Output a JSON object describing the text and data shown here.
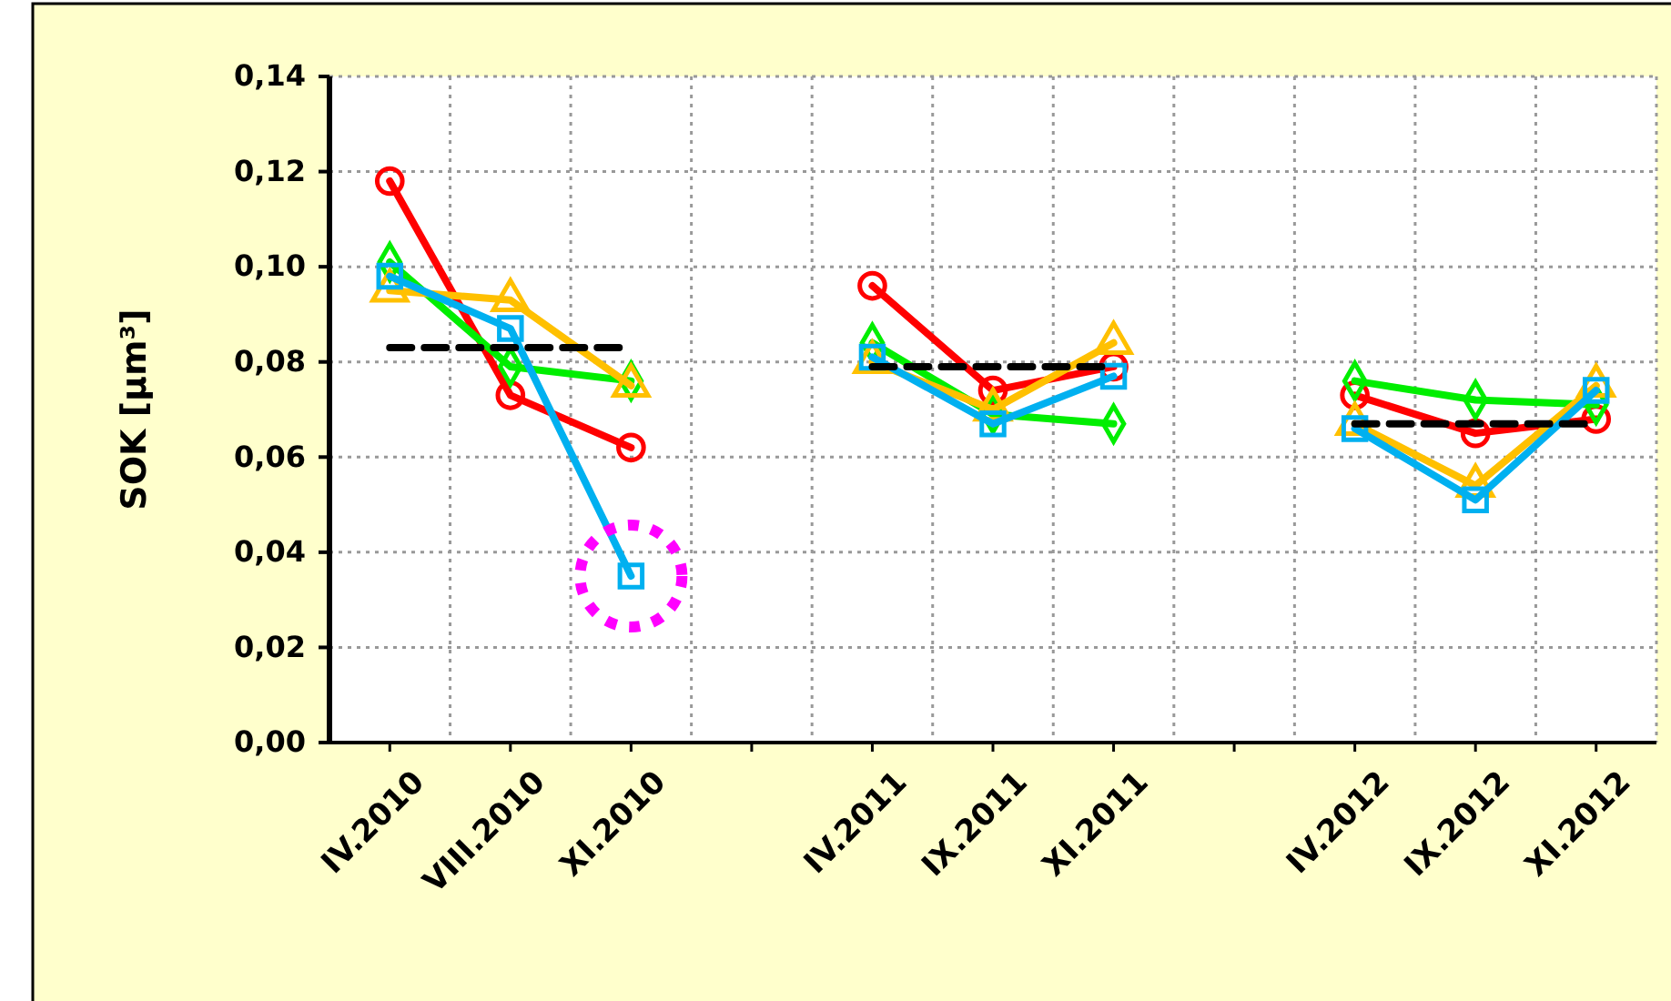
{
  "chart_data": {
    "type": "line",
    "ylabel": "SOK [µm³]",
    "categories": [
      "IV.2010",
      "VIII.2010",
      "XI.2010",
      null,
      "IV.2011",
      "IX.2011",
      "XI.2011",
      null,
      "IV.2012",
      "IX.2012",
      "XI.2012"
    ],
    "series": [
      {
        "color": "#ff0000",
        "marker": "circle",
        "values": [
          0.118,
          0.073,
          0.062,
          null,
          0.096,
          0.074,
          0.079,
          null,
          0.073,
          0.065,
          0.068
        ]
      },
      {
        "color": "#00ee00",
        "marker": "diamond",
        "values": [
          0.101,
          0.079,
          0.076,
          null,
          0.084,
          0.069,
          0.067,
          null,
          0.076,
          0.072,
          0.071
        ]
      },
      {
        "color": "#ffc000",
        "marker": "triangle",
        "values": [
          0.095,
          0.093,
          0.075,
          null,
          0.08,
          0.07,
          0.084,
          null,
          0.067,
          0.054,
          0.075
        ]
      },
      {
        "color": "#00b0f0",
        "marker": "square",
        "values": [
          0.098,
          0.087,
          0.035,
          null,
          0.081,
          0.067,
          0.077,
          null,
          0.066,
          0.051,
          0.074
        ]
      },
      {
        "color": "#000000",
        "marker": "none",
        "line_style": "dashed",
        "values": [
          0.083,
          0.083,
          0.083,
          null,
          0.079,
          0.079,
          0.079,
          null,
          0.067,
          0.067,
          0.067
        ]
      }
    ],
    "ylim": [
      0,
      0.14
    ],
    "yticks": [
      {
        "value": 0,
        "label": "0,00"
      },
      {
        "value": 0.02,
        "label": "0,02"
      },
      {
        "value": 0.04,
        "label": "0,04"
      },
      {
        "value": 0.06,
        "label": "0,06"
      },
      {
        "value": 0.08,
        "label": "0,08"
      },
      {
        "value": 0.1,
        "label": "0,10"
      },
      {
        "value": 0.12,
        "label": "0,12"
      },
      {
        "value": 0.14,
        "label": "0,14"
      }
    ],
    "grid": true,
    "line_style": "solid"
  }
}
